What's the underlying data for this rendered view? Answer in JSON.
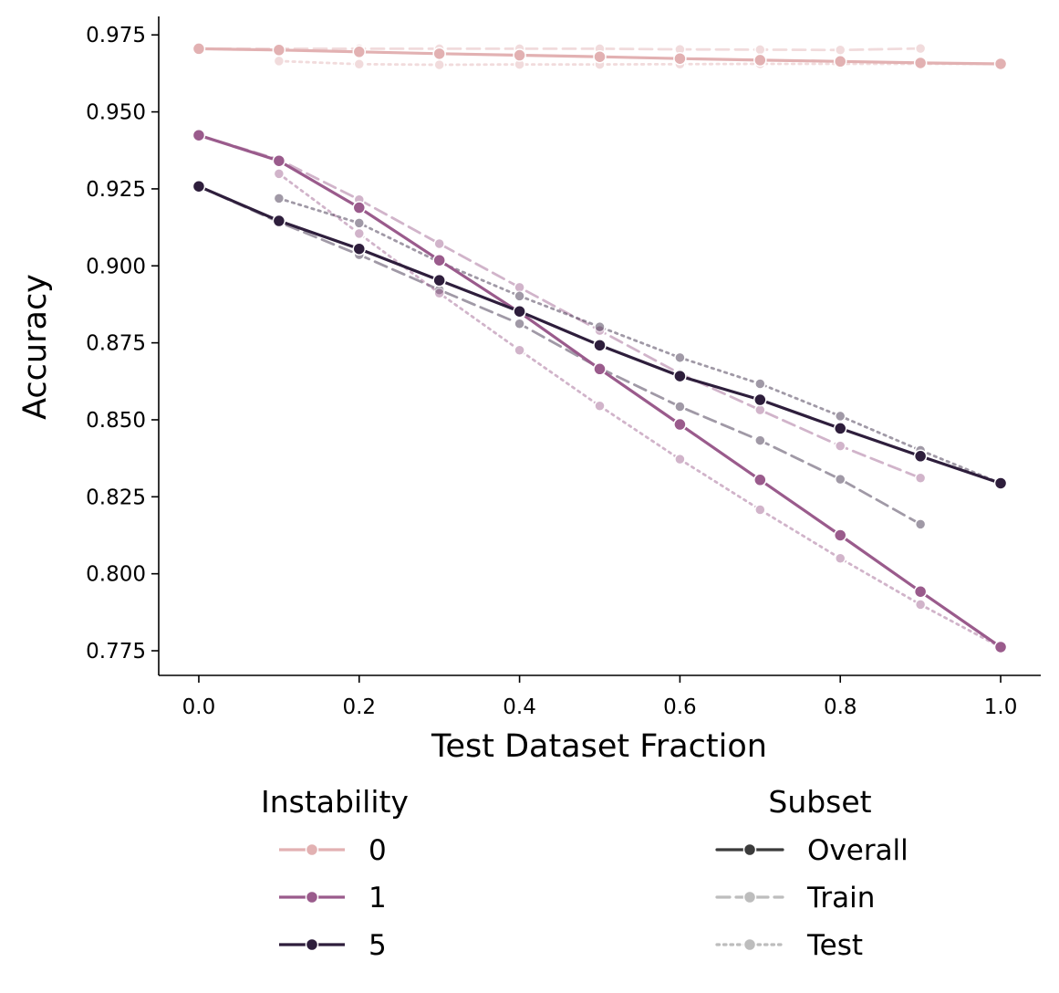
{
  "chart_data": {
    "type": "line",
    "title": "",
    "xlabel": "Test Dataset Fraction",
    "ylabel": "Accuracy",
    "xlim": [
      -0.05,
      1.05
    ],
    "ylim": [
      0.767,
      0.981
    ],
    "xticks": [
      0.0,
      0.2,
      0.4,
      0.6,
      0.8,
      1.0
    ],
    "xtick_labels": [
      "0.0",
      "0.2",
      "0.4",
      "0.6",
      "0.8",
      "1.0"
    ],
    "yticks": [
      0.775,
      0.8,
      0.825,
      0.85,
      0.875,
      0.9,
      0.925,
      0.95,
      0.975
    ],
    "ytick_labels": [
      "0.775",
      "0.800",
      "0.825",
      "0.850",
      "0.875",
      "0.900",
      "0.925",
      "0.950",
      "0.975"
    ],
    "grid": false,
    "legend": {
      "placement": "below",
      "hue_title": "Instability",
      "hue_entries": [
        {
          "label": "0",
          "color": "#e2b1b2"
        },
        {
          "label": "1",
          "color": "#9a5b8c"
        },
        {
          "label": "5",
          "color": "#2e1e3c"
        }
      ],
      "style_title": "Subset",
      "style_entries": [
        {
          "label": "Overall",
          "dash": "solid",
          "color": "#3b3b3b"
        },
        {
          "label": "Train",
          "dash": "dashed",
          "color": "#bdbdbd"
        },
        {
          "label": "Test",
          "dash": "dotted",
          "color": "#bdbdbd"
        }
      ]
    },
    "series": [
      {
        "name": "Instability 0 - Train",
        "instability": "0",
        "subset": "Train",
        "x": [
          0.0,
          0.1,
          0.2,
          0.3,
          0.4,
          0.5,
          0.6,
          0.7,
          0.8,
          0.9
        ],
        "y": [
          0.9705,
          0.9705,
          0.9705,
          0.9705,
          0.9705,
          0.9705,
          0.9703,
          0.9702,
          0.9701,
          0.9706
        ]
      },
      {
        "name": "Instability 0 - Test",
        "instability": "0",
        "subset": "Test",
        "x": [
          0.1,
          0.2,
          0.3,
          0.4,
          0.5,
          0.6,
          0.7,
          0.8,
          0.9,
          1.0
        ],
        "y": [
          0.9665,
          0.9655,
          0.9653,
          0.9654,
          0.9654,
          0.9655,
          0.9656,
          0.9656,
          0.9656,
          0.9656
        ]
      },
      {
        "name": "Instability 0 - Overall",
        "instability": "0",
        "subset": "Overall",
        "x": [
          0.0,
          0.1,
          0.2,
          0.3,
          0.4,
          0.5,
          0.6,
          0.7,
          0.8,
          0.9,
          1.0
        ],
        "y": [
          0.9705,
          0.9701,
          0.9695,
          0.9689,
          0.9684,
          0.9679,
          0.9673,
          0.9668,
          0.9664,
          0.9659,
          0.9656
        ]
      },
      {
        "name": "Instability 1 - Train",
        "instability": "1",
        "subset": "Train",
        "x": [
          0.0,
          0.1,
          0.2,
          0.3,
          0.4,
          0.5,
          0.6,
          0.7,
          0.8,
          0.9
        ],
        "y": [
          0.9424,
          0.9345,
          0.9215,
          0.9072,
          0.893,
          0.879,
          0.865,
          0.8532,
          0.8415,
          0.8311
        ]
      },
      {
        "name": "Instability 1 - Test",
        "instability": "1",
        "subset": "Test",
        "x": [
          0.1,
          0.2,
          0.3,
          0.4,
          0.5,
          0.6,
          0.7,
          0.8,
          0.9,
          1.0
        ],
        "y": [
          0.9299,
          0.9105,
          0.8911,
          0.8726,
          0.8545,
          0.8372,
          0.8208,
          0.805,
          0.79,
          0.7762
        ]
      },
      {
        "name": "Instability 1 - Overall",
        "instability": "1",
        "subset": "Overall",
        "x": [
          0.0,
          0.1,
          0.2,
          0.3,
          0.4,
          0.5,
          0.6,
          0.7,
          0.8,
          0.9,
          1.0
        ],
        "y": [
          0.9424,
          0.9341,
          0.9189,
          0.9018,
          0.8849,
          0.8665,
          0.8485,
          0.8305,
          0.8125,
          0.7942,
          0.7762
        ]
      },
      {
        "name": "Instability 5 - Train",
        "instability": "5",
        "subset": "Train",
        "x": [
          0.0,
          0.1,
          0.2,
          0.3,
          0.4,
          0.5,
          0.6,
          0.7,
          0.8,
          0.9
        ],
        "y": [
          0.9258,
          0.9142,
          0.9036,
          0.8922,
          0.8812,
          0.8668,
          0.8543,
          0.8433,
          0.8307,
          0.8161
        ]
      },
      {
        "name": "Instability 5 - Test",
        "instability": "5",
        "subset": "Test",
        "x": [
          0.1,
          0.2,
          0.3,
          0.4,
          0.5,
          0.6,
          0.7,
          0.8,
          0.9,
          1.0
        ],
        "y": [
          0.9219,
          0.9139,
          0.9012,
          0.8902,
          0.8802,
          0.8702,
          0.8617,
          0.8512,
          0.8401,
          0.8294
        ]
      },
      {
        "name": "Instability 5 - Overall",
        "instability": "5",
        "subset": "Overall",
        "x": [
          0.0,
          0.1,
          0.2,
          0.3,
          0.4,
          0.5,
          0.6,
          0.7,
          0.8,
          0.9,
          1.0
        ],
        "y": [
          0.9258,
          0.9146,
          0.9055,
          0.8953,
          0.8852,
          0.8742,
          0.8642,
          0.8565,
          0.8472,
          0.8382,
          0.8294
        ]
      }
    ]
  }
}
